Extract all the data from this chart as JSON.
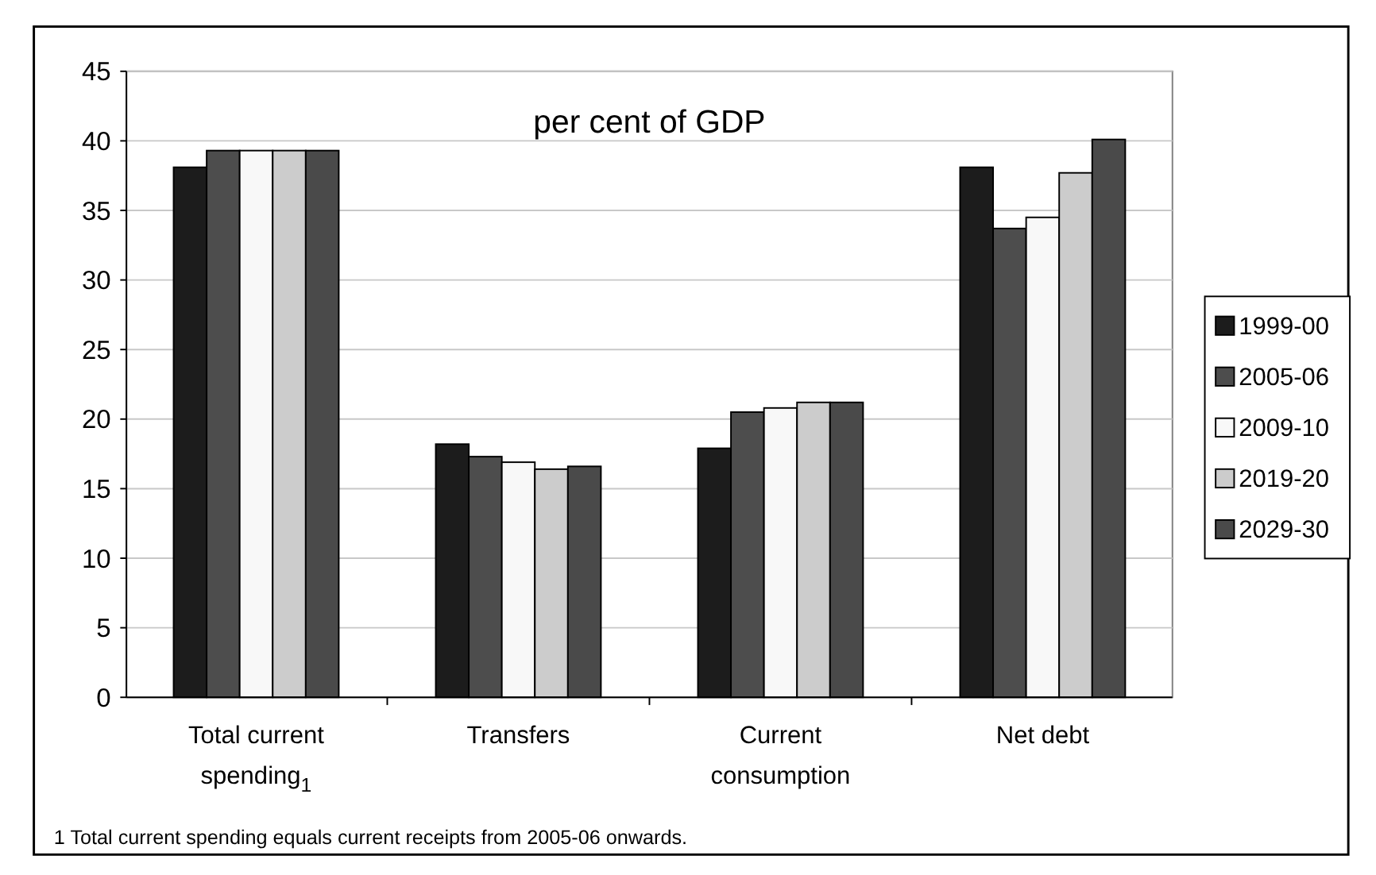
{
  "chart_data": {
    "type": "bar",
    "title": "per cent of GDP",
    "categories": [
      "Total current spending$_{1}$",
      "Transfers",
      "Current consumption",
      "Net debt"
    ],
    "series": [
      {
        "name": "1999-00",
        "color": "#1c1c1c",
        "values": [
          38.1,
          18.2,
          17.9,
          38.1
        ]
      },
      {
        "name": "2005-06",
        "color": "#4d4d4d",
        "values": [
          39.3,
          17.3,
          20.5,
          33.7
        ]
      },
      {
        "name": "2009-10",
        "color": "#f8f8f8",
        "values": [
          39.3,
          16.9,
          20.8,
          34.5
        ]
      },
      {
        "name": "2019-20",
        "color": "#cccccc",
        "values": [
          39.3,
          16.4,
          21.2,
          37.7
        ]
      },
      {
        "name": "2029-30",
        "color": "#4a4a4a",
        "values": [
          39.3,
          16.6,
          21.2,
          40.1
        ]
      }
    ],
    "ylim": [
      0,
      45
    ],
    "yticks": [
      0,
      5,
      10,
      15,
      20,
      25,
      30,
      35,
      40,
      45
    ],
    "grid": "y",
    "legend": "right",
    "annotations": [
      "1 Total current spending equals current receipts from 2005-06 onwards."
    ]
  }
}
